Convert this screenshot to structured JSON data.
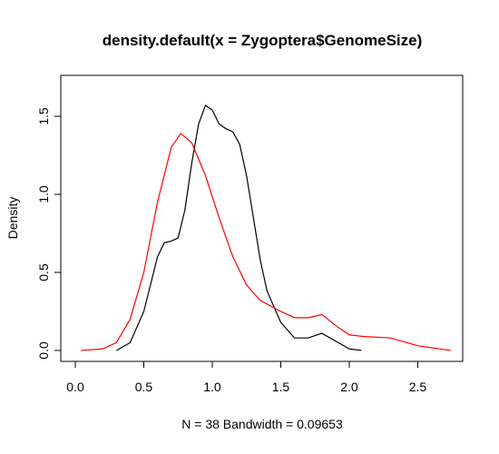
{
  "chart_data": {
    "type": "line",
    "title": "density.default(x = Zygoptera$GenomeSize)",
    "x_label": "N = 38   Bandwidth = 0.09653",
    "y_label": "Density",
    "xlim": [
      -0.106,
      2.828
    ],
    "ylim": [
      -0.07,
      1.762
    ],
    "xticks": [
      {
        "value": 0,
        "label": "0.0"
      },
      0.5,
      {
        "value": 1,
        "label": "1.0"
      },
      1.5,
      {
        "value": 2,
        "label": "2.0"
      },
      2.5
    ],
    "yticks": [
      {
        "value": 0,
        "label": "0.0"
      },
      0.5,
      {
        "value": 1,
        "label": "1.0"
      },
      1.5
    ],
    "series": [
      {
        "color": "#000000",
        "x": [
          0.3,
          0.4,
          0.5,
          0.6,
          0.65,
          0.7,
          0.75,
          0.8,
          0.85,
          0.9,
          0.95,
          1.0,
          1.05,
          1.1,
          1.15,
          1.2,
          1.25,
          1.3,
          1.35,
          1.4,
          1.5,
          1.6,
          1.7,
          1.8,
          1.9,
          2.0,
          2.09
        ],
        "values": [
          0.0,
          0.05,
          0.25,
          0.6,
          0.69,
          0.7,
          0.72,
          0.9,
          1.2,
          1.45,
          1.57,
          1.54,
          1.45,
          1.42,
          1.4,
          1.32,
          1.12,
          0.85,
          0.58,
          0.38,
          0.18,
          0.08,
          0.08,
          0.11,
          0.06,
          0.01,
          0.0
        ]
      },
      {
        "color": "#ff0000",
        "x": [
          0.04,
          0.2,
          0.3,
          0.4,
          0.5,
          0.6,
          0.7,
          0.77,
          0.85,
          0.95,
          1.05,
          1.15,
          1.25,
          1.35,
          1.5,
          1.6,
          1.7,
          1.8,
          1.9,
          2.0,
          2.1,
          2.3,
          2.5,
          2.74
        ],
        "values": [
          0.0,
          0.01,
          0.05,
          0.2,
          0.5,
          0.95,
          1.3,
          1.39,
          1.33,
          1.12,
          0.85,
          0.6,
          0.42,
          0.32,
          0.25,
          0.21,
          0.21,
          0.23,
          0.16,
          0.1,
          0.09,
          0.08,
          0.03,
          0.0
        ]
      }
    ]
  }
}
